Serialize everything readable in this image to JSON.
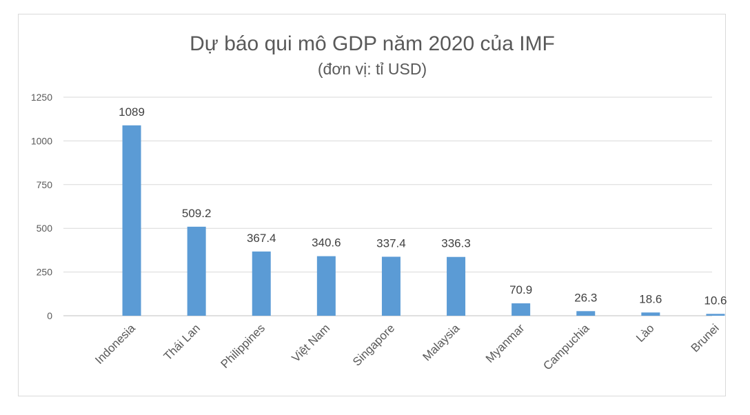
{
  "chart_data": {
    "type": "bar",
    "title": "Dự báo qui mô GDP năm 2020 của IMF",
    "subtitle": "(đơn vị: tỉ USD)",
    "xlabel": "",
    "ylabel": "",
    "ylim": [
      0,
      1250
    ],
    "yticks": [
      0,
      250,
      500,
      750,
      1000,
      1250
    ],
    "ytick_labels": [
      "0",
      "250",
      "500",
      "750",
      "1000",
      "1250"
    ],
    "grid": true,
    "legend": "none",
    "bar_color": "#5b9bd5",
    "categories": [
      "Indonesia",
      "Thái Lan",
      "Philippines",
      "Việt Nam",
      "Singapore",
      "Malaysia",
      "Myanmar",
      "Campuchia",
      "Lào",
      "Brunei"
    ],
    "values": [
      1089,
      509.2,
      367.4,
      340.6,
      337.4,
      336.3,
      70.9,
      26.3,
      18.6,
      10.6
    ],
    "data_labels": [
      "1089",
      "509.2",
      "367.4",
      "340.6",
      "337.4",
      "336.3",
      "70.9",
      "26.3",
      "18.6",
      "10.6"
    ]
  }
}
